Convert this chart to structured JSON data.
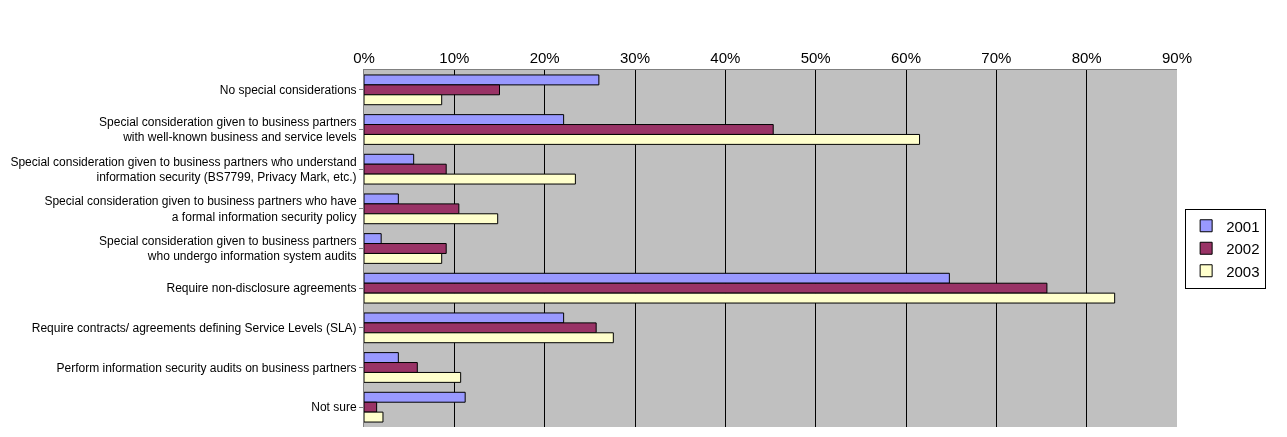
{
  "chart_data": {
    "type": "bar",
    "orientation": "horizontal",
    "categories": [
      "No special considerations",
      "Special consideration given to business partners\nwith well-known business and service levels",
      "Special consideration given to business partners who understand\ninformation security (BS7799, Privacy Mark, etc.)",
      "Special consideration given to business partners who have\na formal information security policy",
      "Special consideration given to business partners\nwho undergo information system audits",
      "Require non-disclosure agreements",
      "Require contracts/ agreements defining Service Levels (SLA)",
      "Perform information security audits on business partners",
      "Not sure"
    ],
    "series": [
      {
        "name": "2001",
        "color": "#9999ff",
        "values": [
          26.0,
          22.1,
          5.5,
          3.8,
          1.9,
          64.8,
          22.1,
          3.8,
          11.2
        ]
      },
      {
        "name": "2002",
        "color": "#993366",
        "values": [
          15.0,
          45.3,
          9.1,
          10.5,
          9.1,
          75.6,
          25.7,
          5.9,
          1.4
        ]
      },
      {
        "name": "2003",
        "color": "#ffffcc",
        "values": [
          8.6,
          61.5,
          23.4,
          14.8,
          8.6,
          83.1,
          27.6,
          10.7,
          2.1
        ]
      }
    ],
    "xlim": [
      0,
      90
    ],
    "xticks": [
      {
        "value": 0,
        "label": "0%"
      },
      {
        "value": 10,
        "label": "10%"
      },
      {
        "value": 20,
        "label": "20%"
      },
      {
        "value": 30,
        "label": "30%"
      },
      {
        "value": 40,
        "label": "40%"
      },
      {
        "value": 50,
        "label": "50%"
      },
      {
        "value": 60,
        "label": "60%"
      },
      {
        "value": 70,
        "label": "70%"
      },
      {
        "value": 80,
        "label": "80%"
      },
      {
        "value": 90,
        "label": "90%"
      }
    ],
    "grid": "x",
    "legend": "right"
  }
}
